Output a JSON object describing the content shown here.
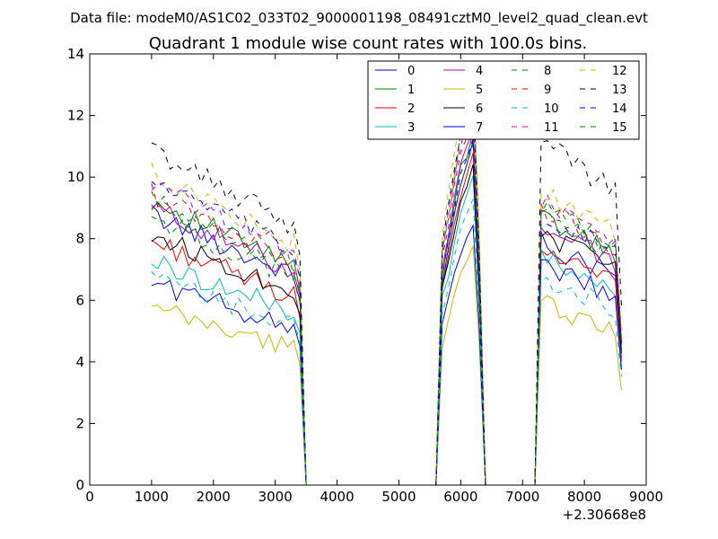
{
  "chart_data": {
    "type": "line",
    "supertitle": "Data file: modeM0/AS1C02_033T02_9000001198_08491cztM0_level2_quad_clean.evt",
    "title": "Quadrant 1 module wise count rates with 100.0s bins.",
    "xlabel": "",
    "ylabel": "",
    "xlim": [
      0,
      9000
    ],
    "ylim": [
      0,
      14
    ],
    "x_offset_label": "+2.30668e8",
    "xticks": [
      0,
      1000,
      2000,
      3000,
      4000,
      5000,
      6000,
      7000,
      8000,
      9000
    ],
    "yticks": [
      0,
      2,
      4,
      6,
      8,
      10,
      12,
      14
    ],
    "legend_position": "top-right",
    "grid": false,
    "series": [
      {
        "name": "0",
        "color": "#0000ff",
        "dash": "solid",
        "seg1": 8.0,
        "seg2": 11.0,
        "seg3": 7.5
      },
      {
        "name": "1",
        "color": "#008000",
        "dash": "solid",
        "seg1": 8.4,
        "seg2": 11.4,
        "seg3": 8.3
      },
      {
        "name": "2",
        "color": "#ff0000",
        "dash": "solid",
        "seg1": 7.2,
        "seg2": 10.6,
        "seg3": 7.3
      },
      {
        "name": "3",
        "color": "#00bfbf",
        "dash": "solid",
        "seg1": 6.6,
        "seg2": 9.9,
        "seg3": 7.0
      },
      {
        "name": "4",
        "color": "#bf00bf",
        "dash": "solid",
        "seg1": 8.2,
        "seg2": 11.5,
        "seg3": 8.0
      },
      {
        "name": "5",
        "color": "#bfbf00",
        "dash": "solid",
        "seg1": 5.2,
        "seg2": 7.6,
        "seg3": 5.6
      },
      {
        "name": "6",
        "color": "#000000",
        "dash": "solid",
        "seg1": 7.4,
        "seg2": 10.4,
        "seg3": 7.8
      },
      {
        "name": "7",
        "color": "#0000ff",
        "dash": "solid",
        "seg1": 6.0,
        "seg2": 8.5,
        "seg3": 6.8
      },
      {
        "name": "8",
        "color": "#008000",
        "dash": "dashed",
        "seg1": 7.9,
        "seg2": 11.0,
        "seg3": 8.4
      },
      {
        "name": "9",
        "color": "#ff0000",
        "dash": "dashed",
        "seg1": 8.6,
        "seg2": 12.0,
        "seg3": 8.6
      },
      {
        "name": "10",
        "color": "#00bfbf",
        "dash": "dashed",
        "seg1": 6.1,
        "seg2": 9.3,
        "seg3": 6.4
      },
      {
        "name": "11",
        "color": "#bf00bf",
        "dash": "dashed",
        "seg1": 8.9,
        "seg2": 12.4,
        "seg3": 8.8
      },
      {
        "name": "12",
        "color": "#bfbf00",
        "dash": "dashed",
        "seg1": 9.2,
        "seg2": 13.5,
        "seg3": 9.1
      },
      {
        "name": "13",
        "color": "#000000",
        "dash": "dashed",
        "seg1": 9.9,
        "seg2": 12.8,
        "seg3": 10.6
      },
      {
        "name": "14",
        "color": "#0000ff",
        "dash": "dashed",
        "seg1": 9.0,
        "seg2": 11.2,
        "seg3": 8.4
      },
      {
        "name": "15",
        "color": "#008000",
        "dash": "dashed",
        "seg1": 8.4,
        "seg2": 12.6,
        "seg3": 8.6
      }
    ]
  }
}
